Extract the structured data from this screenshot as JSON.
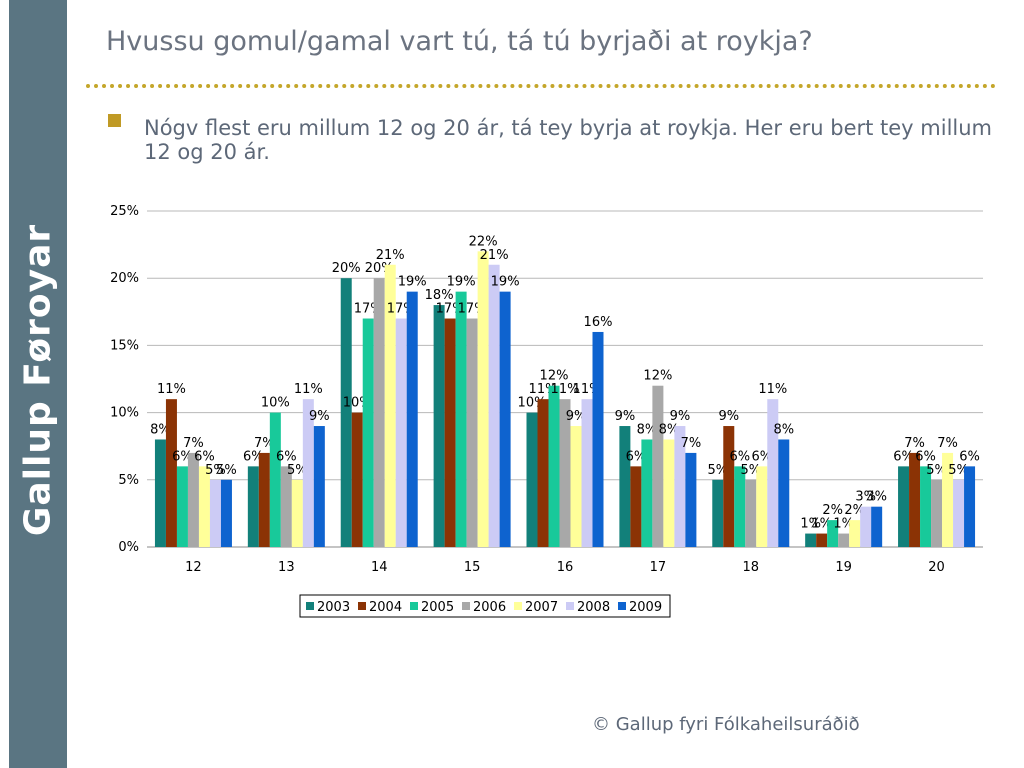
{
  "brand": "Gallup Føroyar",
  "title": "Hvussu gomul/gamal vart tú, tá tú byrjaði at roykja?",
  "bullet": "Nógv flest eru millum 12 og 20 ár, tá tey byrja at roykja. Her eru bert tey millum 12 og 20 ár.",
  "footer": "© Gallup fyri Fólkaheilsuráðið",
  "colors": {
    "side_band": "#5a7582",
    "bullet": "#c09a25",
    "divider": "#c4a62a"
  },
  "chart_data": {
    "type": "bar",
    "categories": [
      "12",
      "13",
      "14",
      "15",
      "16",
      "17",
      "18",
      "19",
      "20"
    ],
    "ylim": [
      0,
      0.25
    ],
    "yticks": [
      "0%",
      "5%",
      "10%",
      "15%",
      "20%",
      "25%"
    ],
    "grid": true,
    "legend": "bottom",
    "series": [
      {
        "name": "2003",
        "color": "#12807a",
        "values": [
          0.08,
          0.06,
          0.2,
          0.18,
          0.1,
          0.09,
          0.05,
          0.01,
          0.06
        ],
        "labels": [
          "8%",
          "6%",
          "20%",
          "18%",
          "10%",
          "9%",
          "5%",
          "1%",
          "6%"
        ]
      },
      {
        "name": "2004",
        "color": "#8b3305",
        "values": [
          0.11,
          0.07,
          0.1,
          0.17,
          0.11,
          0.06,
          0.09,
          0.01,
          0.07
        ],
        "labels": [
          "11%",
          "7%",
          "10%",
          "17%",
          "11%",
          "6%",
          "9%",
          "1%",
          "7%"
        ]
      },
      {
        "name": "2005",
        "color": "#18c99a",
        "values": [
          0.06,
          0.1,
          0.17,
          0.19,
          0.12,
          0.08,
          0.06,
          0.02,
          0.06
        ],
        "labels": [
          "6%",
          "10%",
          "17%",
          "19%",
          "12%",
          "8%",
          "6%",
          "2%",
          "6%"
        ]
      },
      {
        "name": "2006",
        "color": "#a8a8a8",
        "values": [
          0.07,
          0.06,
          0.2,
          0.17,
          0.11,
          0.12,
          0.05,
          0.01,
          0.05
        ],
        "labels": [
          "7%",
          "6%",
          "20%",
          "17%",
          "11%",
          "12%",
          "5%",
          "1%",
          "5%"
        ]
      },
      {
        "name": "2007",
        "color": "#ffff99",
        "values": [
          0.06,
          0.05,
          0.21,
          0.22,
          0.09,
          0.08,
          0.06,
          0.02,
          0.07
        ],
        "labels": [
          "6%",
          "5%",
          "21%",
          "22%",
          "9%",
          "8%",
          "6%",
          "2%",
          "7%"
        ]
      },
      {
        "name": "2008",
        "color": "#cccbf5",
        "values": [
          0.05,
          0.11,
          0.17,
          0.21,
          0.11,
          0.09,
          0.11,
          0.03,
          0.05
        ],
        "labels": [
          "5%",
          "11%",
          "17%",
          "21%",
          "11%",
          "9%",
          "11%",
          "3%",
          "5%"
        ]
      },
      {
        "name": "2009",
        "color": "#0e63cf",
        "values": [
          0.05,
          0.09,
          0.19,
          0.19,
          0.16,
          0.07,
          0.08,
          0.03,
          0.06
        ],
        "labels": [
          "5%",
          "9%",
          "19%",
          "19%",
          "16%",
          "7%",
          "8%",
          "3%",
          "6%"
        ]
      }
    ]
  }
}
